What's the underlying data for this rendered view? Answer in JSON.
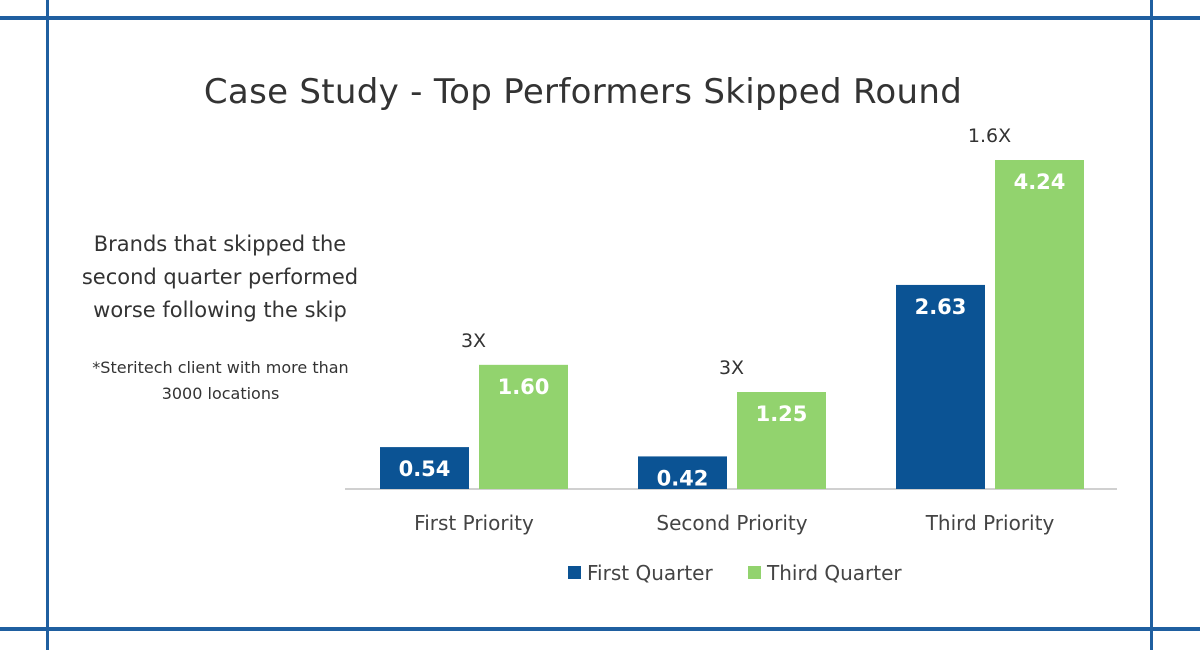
{
  "title": "Case Study - Top Performers Skipped Round",
  "side_text": {
    "lines": [
      "Brands that skipped the",
      "second quarter performed",
      "worse following the skip"
    ],
    "note_lines": [
      "*Steritech client with more than",
      "3000 locations"
    ]
  },
  "colors": {
    "frame": "#1f5fa0",
    "first_quarter": "#0b5394",
    "third_quarter": "#92d36e"
  },
  "chart_data": {
    "type": "bar",
    "categories": [
      "First Priority",
      "Second Priority",
      "Third Priority"
    ],
    "series": [
      {
        "name": "First Quarter",
        "values": [
          0.54,
          0.42,
          2.63
        ],
        "labels": [
          "0.54",
          "0.42",
          "2.63"
        ]
      },
      {
        "name": "Third Quarter",
        "values": [
          1.6,
          1.25,
          4.24
        ],
        "labels": [
          "1.60",
          "1.25",
          "4.24"
        ]
      }
    ],
    "annotations": [
      "3X",
      "3X",
      "1.6X"
    ],
    "ylim": [
      0,
      4.24
    ],
    "legend": "bottom",
    "grid": false
  }
}
